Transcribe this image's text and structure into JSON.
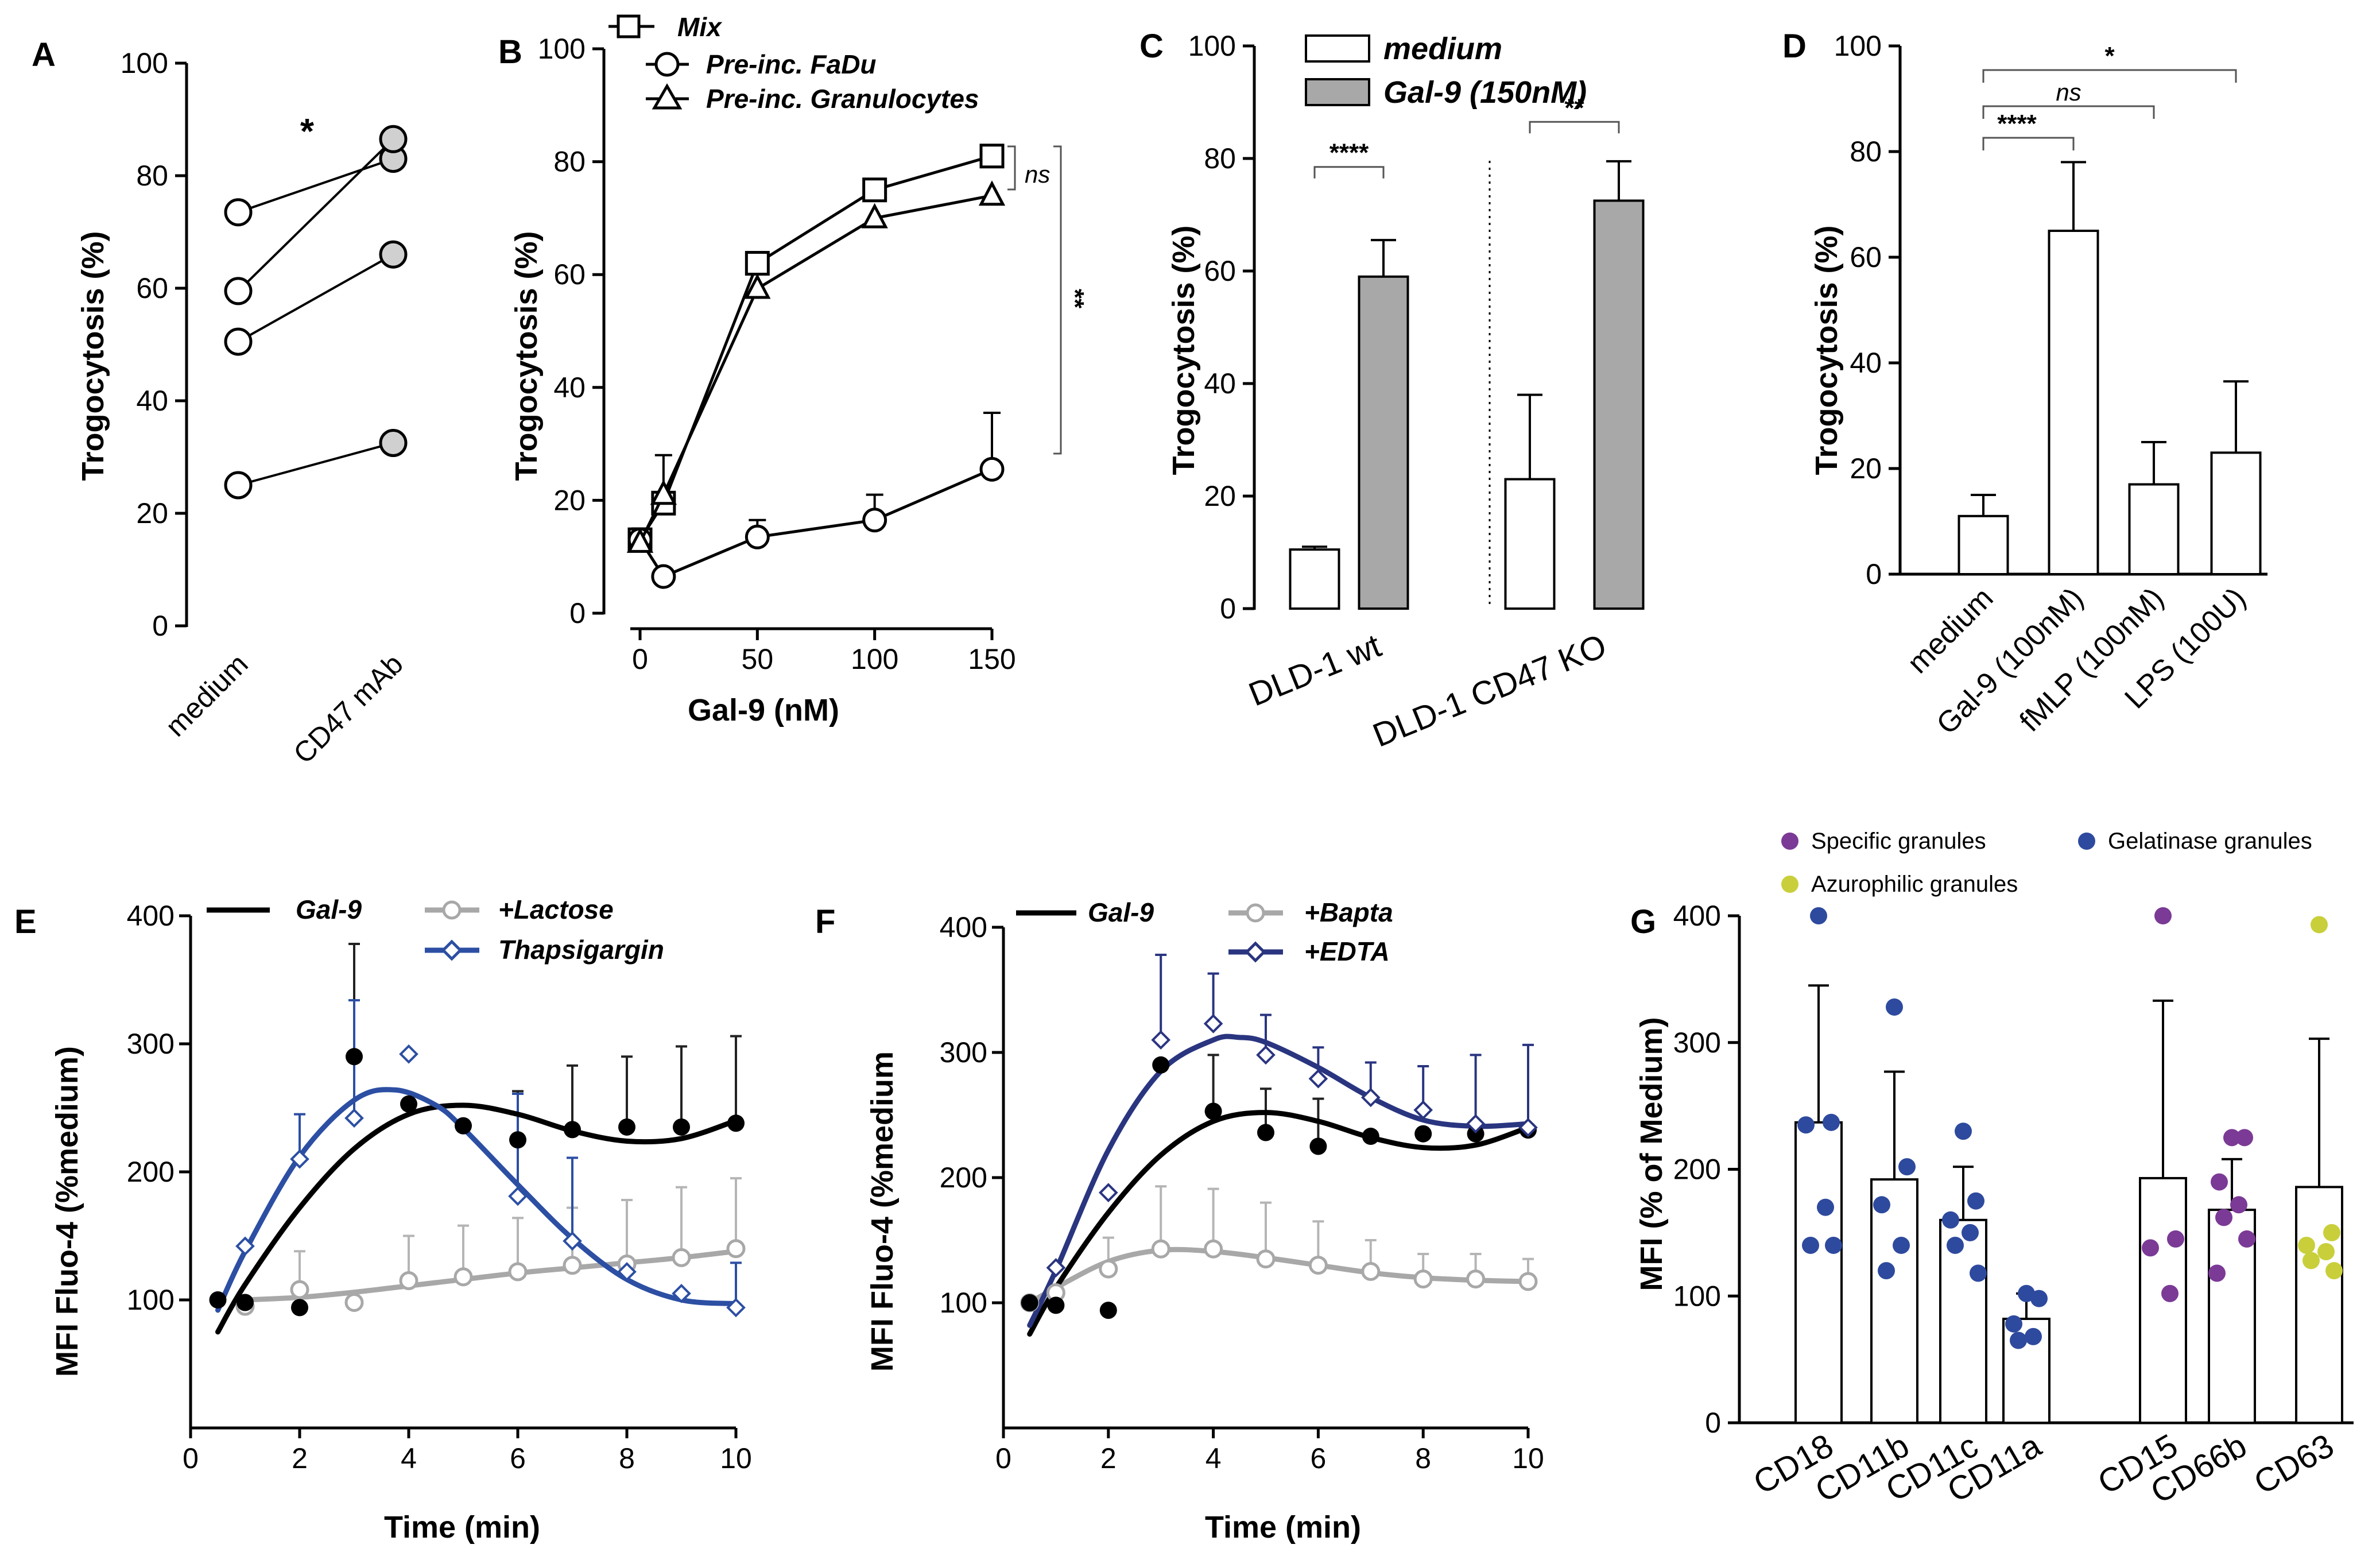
{
  "chart_data": [
    {
      "panel": "A",
      "type": "paired-dot",
      "ylabel": "Trogocytosis (%)",
      "ylim": [
        0,
        100
      ],
      "yticks": [
        0,
        20,
        40,
        60,
        80,
        100
      ],
      "categories": [
        "medium",
        "CD47 mAb"
      ],
      "pairs": [
        [
          73.5,
          83
        ],
        [
          59.5,
          86.5
        ],
        [
          50.5,
          66
        ],
        [
          25,
          32.5
        ]
      ],
      "significance": "*"
    },
    {
      "panel": "B",
      "type": "line",
      "xlabel": "Gal-9 (nM)",
      "ylabel": "Trogocytosis (%)",
      "xlim": [
        0,
        150
      ],
      "ylim": [
        0,
        100
      ],
      "xticks": [
        0,
        50,
        100,
        150
      ],
      "yticks": [
        0,
        20,
        40,
        60,
        80,
        100
      ],
      "x": [
        0,
        10,
        50,
        100,
        150
      ],
      "series": [
        {
          "name": "Mix",
          "marker": "square",
          "values": [
            13,
            19.5,
            62,
            75,
            81
          ],
          "errors": [
            1.5,
            0,
            0,
            0,
            0
          ]
        },
        {
          "name": "Pre-inc. FaDu",
          "marker": "circle",
          "values": [
            13,
            6.5,
            13.5,
            16.5,
            25.5
          ],
          "errors": [
            2,
            0,
            3,
            4.5,
            10
          ]
        },
        {
          "name": "Pre-inc. Granulocytes",
          "marker": "triangle",
          "values": [
            12.5,
            21,
            57.5,
            70,
            74
          ],
          "errors": [
            0,
            7,
            0,
            0,
            0
          ]
        }
      ],
      "annotations": [
        "ns",
        "**"
      ]
    },
    {
      "panel": "C",
      "type": "bar",
      "ylabel": "Trogocytosis (%)",
      "ylim": [
        0,
        100
      ],
      "yticks": [
        0,
        20,
        40,
        60,
        80,
        100
      ],
      "categories": [
        "DLD-1 wt",
        "DLD-1 CD47 KO"
      ],
      "series": [
        {
          "name": "medium",
          "color": "#ffffff",
          "values": [
            10.5,
            23
          ],
          "errors": [
            0.5,
            15
          ]
        },
        {
          "name": "Gal-9 (150nM)",
          "color": "#a8a8a8",
          "values": [
            59,
            72.5
          ],
          "errors": [
            6.5,
            7
          ]
        }
      ],
      "significance": [
        "****",
        "**"
      ]
    },
    {
      "panel": "D",
      "type": "bar",
      "ylabel": "Trogocytosis (%)",
      "ylim": [
        0,
        100
      ],
      "yticks": [
        0,
        20,
        40,
        60,
        80,
        100
      ],
      "categories": [
        "medium",
        "Gal-9 (100nM)",
        "fMLP (100nM)",
        "LPS (100U)"
      ],
      "values": [
        11,
        65,
        17,
        23
      ],
      "errors": [
        4,
        13,
        8,
        13.5
      ],
      "significance": [
        {
          "to": 1,
          "label": "****"
        },
        {
          "to": 2,
          "label": "ns"
        },
        {
          "to": 3,
          "label": "*"
        }
      ]
    },
    {
      "panel": "E",
      "type": "line",
      "xlabel": "Time (min)",
      "ylabel": "MFI Fluo-4 (%medium)",
      "xlim": [
        0,
        10
      ],
      "ylim": [
        0,
        400
      ],
      "xticks": [
        0,
        2,
        4,
        6,
        8,
        10
      ],
      "yticks": [
        100,
        200,
        300,
        400
      ],
      "series": [
        {
          "name": "Gal-9",
          "color": "#000000",
          "marker": "filled-circle",
          "x": [
            0.5,
            1,
            2,
            3,
            4,
            5,
            6,
            7,
            8,
            9,
            10
          ],
          "values": [
            100,
            98,
            94,
            290,
            253,
            236,
            225,
            233,
            235,
            235,
            238
          ],
          "errors": [
            0,
            0,
            0,
            88,
            0,
            0,
            38,
            50,
            55,
            63,
            68
          ],
          "fit_x": [
            0.5,
            1,
            2,
            3,
            4,
            5,
            6,
            7,
            8,
            9,
            10
          ],
          "fit": [
            75,
            112,
            172,
            218,
            245,
            252,
            245,
            232,
            224,
            226,
            240
          ]
        },
        {
          "name": "+Lactose",
          "color": "#a8a8a8",
          "marker": "open-circle",
          "x": [
            1,
            2,
            3,
            4,
            5,
            6,
            7,
            8,
            9,
            10
          ],
          "values": [
            95,
            108,
            98,
            115,
            118,
            122,
            127,
            128,
            133,
            140
          ],
          "errors": [
            0,
            30,
            0,
            35,
            40,
            42,
            45,
            50,
            55,
            55
          ],
          "fit_x": [
            1,
            2,
            3,
            4,
            5,
            6,
            7,
            8,
            9,
            10
          ],
          "fit": [
            100,
            102,
            106,
            111,
            116,
            121,
            125,
            129,
            133,
            138
          ]
        },
        {
          "name": "Thapsigargin",
          "color": "#2c4fa3",
          "marker": "open-diamond",
          "x": [
            1,
            2,
            3,
            4,
            6,
            7,
            8,
            9,
            10
          ],
          "values": [
            142,
            210,
            242,
            292,
            181,
            146,
            122,
            105,
            94
          ],
          "errors": [
            0,
            35,
            92,
            0,
            80,
            65,
            0,
            0,
            35
          ],
          "fit_x": [
            0.5,
            1,
            2,
            3,
            3.75,
            4.5,
            5,
            6,
            7,
            8,
            9,
            10
          ],
          "fit": [
            92,
            138,
            212,
            256,
            264,
            252,
            234,
            190,
            148,
            116,
            100,
            97
          ]
        }
      ]
    },
    {
      "panel": "F",
      "type": "line",
      "xlabel": "Time (min)",
      "ylabel": "MFI Fluo-4 (%medium",
      "xlim": [
        0,
        10
      ],
      "ylim": [
        0,
        400
      ],
      "xticks": [
        0,
        2,
        4,
        6,
        8,
        10
      ],
      "yticks": [
        100,
        200,
        300,
        400
      ],
      "series": [
        {
          "name": "Gal-9",
          "color": "#000000",
          "marker": "filled-circle",
          "x": [
            0.5,
            1,
            2,
            3,
            4,
            5,
            6,
            7,
            8,
            9,
            10
          ],
          "values": [
            100,
            98,
            94,
            290,
            253,
            236,
            225,
            233,
            235,
            235,
            238
          ],
          "errors": [
            0,
            0,
            0,
            0,
            45,
            35,
            38,
            0,
            0,
            0,
            0
          ],
          "fit_x": [
            0.5,
            1,
            2,
            3,
            4,
            5,
            6,
            7,
            8,
            9,
            10
          ],
          "fit": [
            75,
            112,
            172,
            218,
            245,
            252,
            245,
            232,
            224,
            226,
            240
          ]
        },
        {
          "name": "+Bapta",
          "color": "#a8a8a8",
          "marker": "open-circle",
          "x": [
            0.5,
            1,
            2,
            3,
            4,
            5,
            6,
            7,
            8,
            9,
            10
          ],
          "values": [
            100,
            108,
            127,
            143,
            143,
            135,
            130,
            125,
            119,
            119,
            117
          ],
          "errors": [
            0,
            0,
            25,
            50,
            48,
            45,
            35,
            25,
            20,
            20,
            18
          ],
          "fit_x": [
            0.5,
            1,
            2,
            3,
            4,
            5,
            6,
            7,
            8,
            9,
            10
          ],
          "fit": [
            100,
            112,
            133,
            142,
            141,
            136,
            130,
            124,
            120,
            118,
            117
          ]
        },
        {
          "name": "+EDTA",
          "color": "#2a3580",
          "marker": "open-diamond",
          "x": [
            1,
            2,
            3,
            4,
            5,
            6,
            7,
            8,
            9,
            10
          ],
          "values": [
            128,
            188,
            310,
            323,
            298,
            279,
            264,
            254,
            243,
            240
          ],
          "errors": [
            0,
            0,
            68,
            40,
            32,
            25,
            28,
            35,
            55,
            66
          ],
          "fit_x": [
            0.5,
            1,
            2,
            3,
            4,
            4.5,
            5,
            6,
            7,
            8,
            9,
            10
          ],
          "fit": [
            82,
            126,
            222,
            285,
            310,
            312,
            308,
            288,
            264,
            246,
            241,
            243
          ]
        }
      ]
    },
    {
      "panel": "G",
      "type": "bar-dot",
      "ylabel": "MFI (% of Medium)",
      "ylim": [
        0,
        400
      ],
      "yticks": [
        0,
        100,
        200,
        300,
        400
      ],
      "categories": [
        "CD18",
        "CD11b",
        "CD11c",
        "CD11a",
        "CD15",
        "CD66b",
        "CD63"
      ],
      "values": [
        237,
        192,
        160,
        82,
        193,
        168,
        186
      ],
      "errors": [
        108,
        85,
        42,
        20,
        140,
        40,
        117
      ],
      "granule_type": [
        "gelatinase",
        "gelatinase",
        "gelatinase",
        "gelatinase",
        "specific",
        "specific",
        "azurophilic"
      ],
      "points": [
        [
          400,
          237,
          235,
          170,
          140,
          140
        ],
        [
          328,
          202,
          172,
          140,
          120
        ],
        [
          230,
          175,
          160,
          150,
          140,
          118
        ],
        [
          102,
          98,
          78,
          68,
          65
        ],
        [
          400,
          145,
          138,
          102
        ],
        [
          225,
          225,
          190,
          172,
          162,
          145,
          118
        ],
        [
          393,
          150,
          140,
          135,
          128,
          120
        ]
      ],
      "legend": {
        "specific": "Specific granules",
        "gelatinase": "Gelatinase granules",
        "azurophilic": "Azurophilic granules"
      },
      "colors": {
        "specific": "#7b3a96",
        "gelatinase": "#2e4a9e",
        "azurophilic": "#c9cf3a"
      }
    }
  ]
}
